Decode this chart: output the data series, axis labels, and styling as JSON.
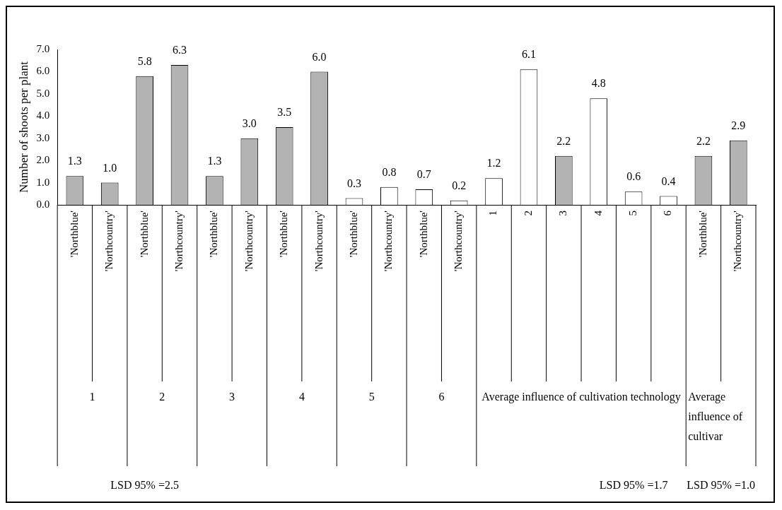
{
  "chart_data": {
    "type": "bar",
    "ylabel": "Number of shoots per plant",
    "categories": [
      "'Northblue'",
      "'Northcountry'",
      "'Northblue'",
      "'Northcountry'",
      "'Northblue'",
      "'Northcountry'",
      "'Northblue'",
      "'Northcountry'",
      "'Northblue'",
      "'Northcountry'",
      "'Northblue'",
      "'Northcountry'",
      "1",
      "2",
      "3",
      "4",
      "5",
      "6",
      "'Northblue'",
      "'Northcountry'"
    ],
    "values": [
      1.3,
      1.0,
      5.8,
      6.3,
      1.3,
      3.0,
      3.5,
      6.0,
      0.3,
      0.8,
      0.7,
      0.2,
      1.2,
      6.1,
      2.2,
      4.8,
      0.6,
      0.4,
      2.2,
      2.9
    ],
    "colors": [
      "#b3b3b3",
      "#b3b3b3",
      "#b3b3b3",
      "#b3b3b3",
      "#b3b3b3",
      "#b3b3b3",
      "#b3b3b3",
      "#b3b3b3",
      "#ffffff",
      "#ffffff",
      "#ffffff",
      "#ffffff",
      "#ffffff",
      "#ffffff",
      "#b3b3b3",
      "#ffffff",
      "#ffffff",
      "#ffffff",
      "#b3b3b3",
      "#b3b3b3"
    ],
    "value_labels": [
      "1.3",
      "1.0",
      "5.8",
      "6.3",
      "1.3",
      "3.0",
      "3.5",
      "6.0",
      "0.3",
      "0.8",
      "0.7",
      "0.2",
      "1.2",
      "6.1",
      "2.2",
      "4.8",
      "0.6",
      "0.4",
      "2.2",
      "2.9"
    ],
    "ylim": [
      0,
      7
    ],
    "yticks": [
      {
        "value": 0,
        "label": "0.0"
      },
      {
        "value": 1,
        "label": "1.0"
      },
      {
        "value": 2,
        "label": "2.0"
      },
      {
        "value": 3,
        "label": "3.0"
      },
      {
        "value": 4,
        "label": "4.0"
      },
      {
        "value": 5,
        "label": "5.0"
      },
      {
        "value": 6,
        "label": "6.0"
      },
      {
        "value": 7,
        "label": "7.0"
      }
    ],
    "annotations": [
      "1",
      "2",
      "3",
      "4",
      "5",
      "6",
      "Average influence of cultivation technology",
      "Average influence of cultivar",
      "LSD 95% =2.5",
      "LSD 95% =1.7",
      "LSD 95% =1.0"
    ],
    "grid": false,
    "legend": false
  }
}
